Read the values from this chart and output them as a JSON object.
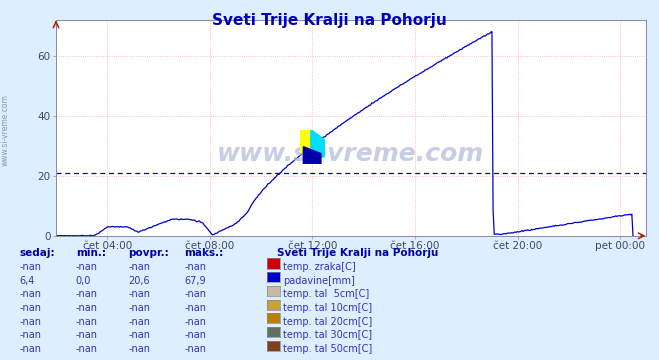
{
  "title": "Sveti Trije Kralji na Pohorju",
  "bg_color": "#ddeeff",
  "plot_bg_color": "#ffffff",
  "line_color": "#0000cc",
  "grid_color": "#ffaaaa",
  "grid_minor_color": "#ffdddd",
  "hline_color": "#0000bb",
  "hline_y": 21,
  "ylim": [
    0,
    70
  ],
  "yticks": [
    0,
    20,
    40,
    60
  ],
  "xtick_labels": [
    "čet 04:00",
    "čet 08:00",
    "čet 12:00",
    "čet 16:00",
    "čet 20:00",
    "pet 00:00"
  ],
  "xtick_positions": [
    4,
    8,
    12,
    16,
    20,
    24
  ],
  "xlim": [
    2,
    25
  ],
  "watermark": "www.si-vreme.com",
  "sidebar_text": "www.si-vreme.com",
  "legend_title": "Sveti Trije Kralji na Pohorju",
  "legend_items": [
    {
      "label": "temp. zraka[C]",
      "color": "#cc0000"
    },
    {
      "label": "padavine[mm]",
      "color": "#0000cc"
    },
    {
      "label": "temp. tal  5cm[C]",
      "color": "#c8b8a8"
    },
    {
      "label": "temp. tal 10cm[C]",
      "color": "#c8a040"
    },
    {
      "label": "temp. tal 20cm[C]",
      "color": "#b88000"
    },
    {
      "label": "temp. tal 30cm[C]",
      "color": "#607060"
    },
    {
      "label": "temp. tal 50cm[C]",
      "color": "#804020"
    }
  ],
  "table_headers": [
    "sedaj:",
    "min.:",
    "povpr.:",
    "maks.:"
  ],
  "table_rows": [
    [
      "-nan",
      "-nan",
      "-nan",
      "-nan"
    ],
    [
      "6,4",
      "0,0",
      "20,6",
      "67,9"
    ],
    [
      "-nan",
      "-nan",
      "-nan",
      "-nan"
    ],
    [
      "-nan",
      "-nan",
      "-nan",
      "-nan"
    ],
    [
      "-nan",
      "-nan",
      "-nan",
      "-nan"
    ],
    [
      "-nan",
      "-nan",
      "-nan",
      "-nan"
    ],
    [
      "-nan",
      "-nan",
      "-nan",
      "-nan"
    ]
  ]
}
